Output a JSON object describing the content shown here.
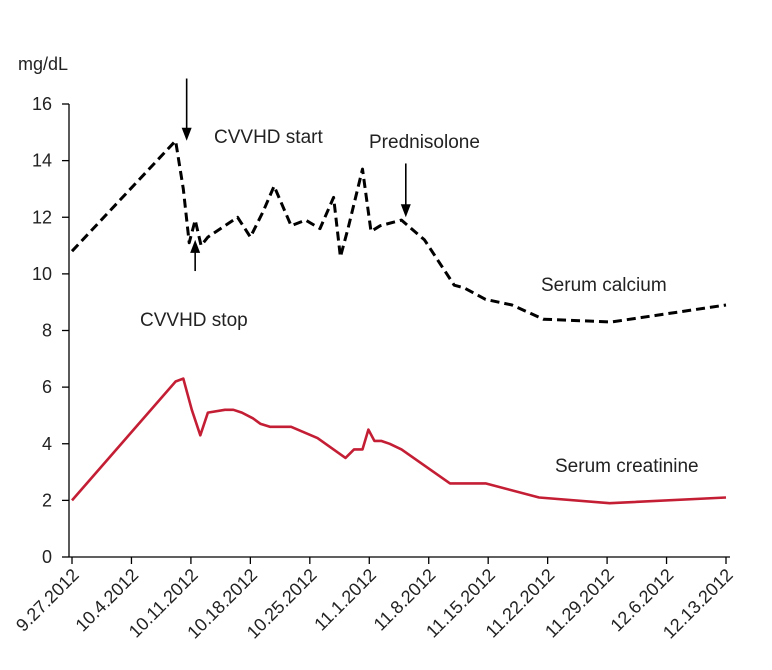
{
  "chart_data": {
    "type": "line",
    "title": "",
    "xlabel": "",
    "ylabel": "mg/dL",
    "ylim": [
      0,
      16
    ],
    "yticks": [
      0,
      2,
      4,
      6,
      8,
      10,
      12,
      14,
      16
    ],
    "xlim": [
      0,
      77
    ],
    "xticks": [
      {
        "day": 0,
        "label": "9.27.2012"
      },
      {
        "day": 7,
        "label": "10.4.2012"
      },
      {
        "day": 14,
        "label": "10.11.2012"
      },
      {
        "day": 21,
        "label": "10.18.2012"
      },
      {
        "day": 28,
        "label": "10.25.2012"
      },
      {
        "day": 35,
        "label": "11.1.2012"
      },
      {
        "day": 42,
        "label": "11.8.2012"
      },
      {
        "day": 49,
        "label": "11.15.2012"
      },
      {
        "day": 56,
        "label": "11.22.2012"
      },
      {
        "day": 63,
        "label": "11.29.2012"
      },
      {
        "day": 70,
        "label": "12.6.2012"
      },
      {
        "day": 77,
        "label": "12.13.2012"
      }
    ],
    "series": [
      {
        "name": "Serum calcium",
        "label": "Serum calcium",
        "style": "dashed",
        "color": "#000000",
        "x": [
          0,
          12.2,
          13.1,
          13.8,
          14.5,
          15.2,
          16,
          19.5,
          21,
          22.5,
          23.8,
          25.8,
          27.5,
          29.2,
          30.8,
          31.6,
          32.5,
          34.2,
          35.2,
          36.3,
          38.8,
          41.5,
          45,
          46.2,
          48.7,
          51.8,
          55.5,
          63.5,
          77
        ],
        "y": [
          10.8,
          14.7,
          13.0,
          11.1,
          11.9,
          11.0,
          11.3,
          12.0,
          11.3,
          12.2,
          13.1,
          11.7,
          11.9,
          11.6,
          12.7,
          10.6,
          11.6,
          13.7,
          11.5,
          11.7,
          11.9,
          11.2,
          9.6,
          9.5,
          9.1,
          8.9,
          8.4,
          8.3,
          8.9
        ]
      },
      {
        "name": "Serum creatinine",
        "label": "Serum creatinine",
        "style": "solid",
        "color": "#c41e35",
        "x": [
          0,
          12.2,
          13.1,
          14.1,
          15.1,
          16,
          18,
          19,
          20,
          21.3,
          22.2,
          23.3,
          25.8,
          28.9,
          32.2,
          33.2,
          34.2,
          34.9,
          35.6,
          36.4,
          37.4,
          38.8,
          44.5,
          48.7,
          55,
          63.3,
          77
        ],
        "y": [
          2.0,
          6.2,
          6.3,
          5.2,
          4.3,
          5.1,
          5.2,
          5.2,
          5.1,
          4.9,
          4.7,
          4.6,
          4.6,
          4.2,
          3.5,
          3.8,
          3.8,
          4.5,
          4.1,
          4.1,
          4.0,
          3.8,
          2.6,
          2.6,
          2.1,
          1.9,
          2.1
        ]
      }
    ],
    "annotations": [
      {
        "text": "CVVHD start",
        "arrow_day": 13.5,
        "arrow_from": 16.9,
        "arrow_to": 14.7
      },
      {
        "text": "CVVHD stop",
        "arrow_day": 14.5,
        "arrow_from": 10.1,
        "arrow_to": 11.2
      },
      {
        "text": "Prednisolone",
        "arrow_day": 39.3,
        "arrow_from": 13.9,
        "arrow_to": 12.0
      }
    ]
  }
}
